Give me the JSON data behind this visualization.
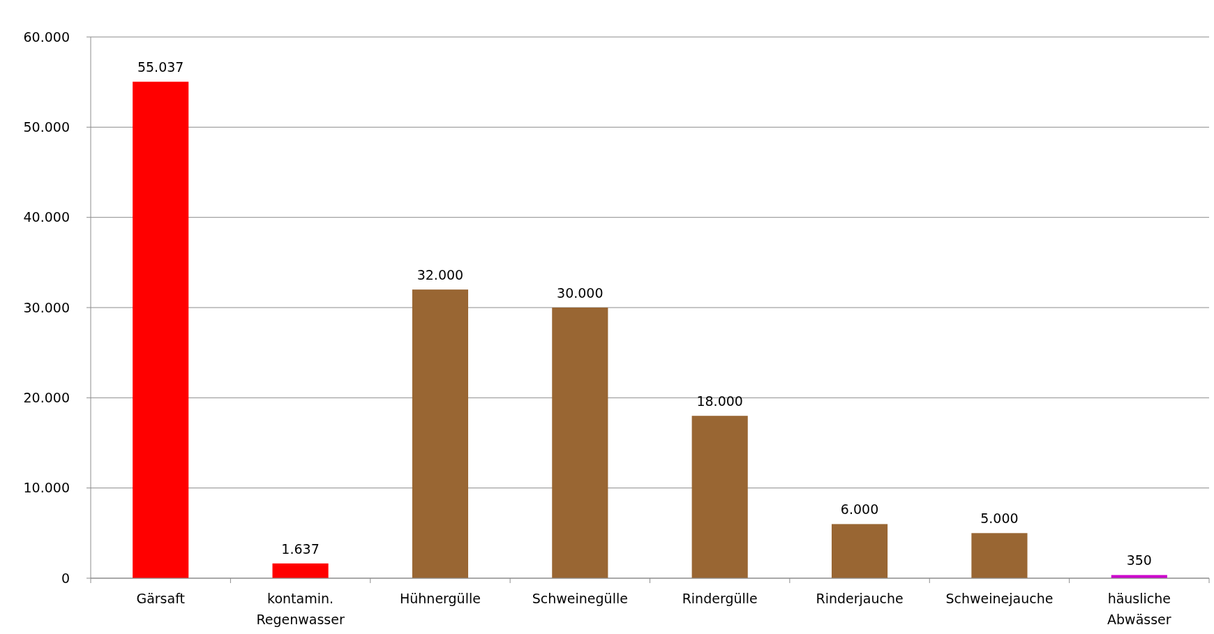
{
  "chart_data": {
    "type": "bar",
    "categories": [
      "Gärsaft",
      "kontamin.\nRegenwasser",
      "Hühnergülle",
      "Schweinegülle",
      "Rindergülle",
      "Rinderjauche",
      "Schweinejauche",
      "häusliche\nAbwässer"
    ],
    "values": [
      55037,
      1637,
      32000,
      30000,
      18000,
      6000,
      5000,
      350
    ],
    "colors": [
      "#ff0000",
      "#ff0000",
      "#996633",
      "#996633",
      "#996633",
      "#996633",
      "#996633",
      "#cc00cc"
    ],
    "value_labels": [
      "55.037",
      "1.637",
      "32.000",
      "30.000",
      "18.000",
      "6.000",
      "5.000",
      "350"
    ],
    "ylim": [
      0,
      60000
    ],
    "yticks": [
      {
        "value": 0,
        "label": "0"
      },
      {
        "value": 10000,
        "label": "10.000"
      },
      {
        "value": 20000,
        "label": "20.000"
      },
      {
        "value": 30000,
        "label": "30.000"
      },
      {
        "value": 40000,
        "label": "40.000"
      },
      {
        "value": 50000,
        "label": "50.000"
      },
      {
        "value": 60000,
        "label": "60.000"
      }
    ],
    "grid": "y"
  }
}
